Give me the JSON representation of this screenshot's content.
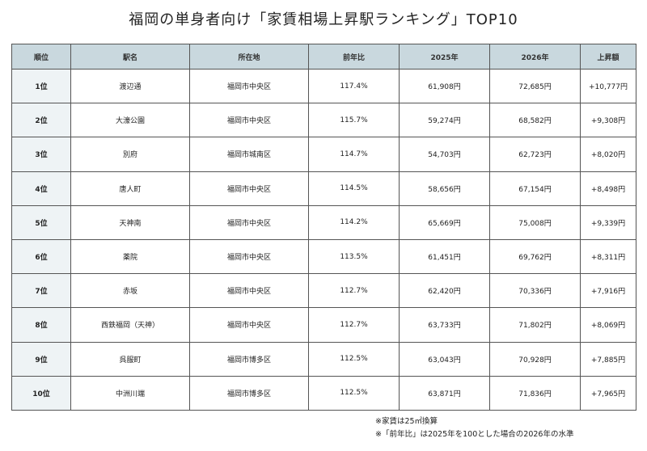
{
  "title": "福岡の単身者向け「家賃相場上昇駅ランキング」TOP10",
  "table": {
    "headers": [
      "順位",
      "駅名",
      "所在地",
      "前年比",
      "2025年",
      "2026年",
      "上昇額"
    ],
    "rows": [
      [
        "1位",
        "渡辺通",
        "福岡市中央区",
        "117.4%",
        "61,908円",
        "72,685円",
        "+10,777円"
      ],
      [
        "2位",
        "大濠公園",
        "福岡市中央区",
        "115.7%",
        "59,274円",
        "68,582円",
        "+9,308円"
      ],
      [
        "3位",
        "別府",
        "福岡市城南区",
        "114.7%",
        "54,703円",
        "62,723円",
        "+8,020円"
      ],
      [
        "4位",
        "唐人町",
        "福岡市中央区",
        "114.5%",
        "58,656円",
        "67,154円",
        "+8,498円"
      ],
      [
        "5位",
        "天神南",
        "福岡市中央区",
        "114.2%",
        "65,669円",
        "75,008円",
        "+9,339円"
      ],
      [
        "6位",
        "薬院",
        "福岡市中央区",
        "113.5%",
        "61,451円",
        "69,762円",
        "+8,311円"
      ],
      [
        "7位",
        "赤坂",
        "福岡市中央区",
        "112.7%",
        "62,420円",
        "70,336円",
        "+7,916円"
      ],
      [
        "8位",
        "西鉄福岡（天神）",
        "福岡市中央区",
        "112.7%",
        "63,733円",
        "71,802円",
        "+8,069円"
      ],
      [
        "9位",
        "呉服町",
        "福岡市博多区",
        "112.5%",
        "63,043円",
        "70,928円",
        "+7,885円"
      ],
      [
        "10位",
        "中洲川端",
        "福岡市博多区",
        "112.5%",
        "63,871円",
        "71,836円",
        "+7,965円"
      ]
    ]
  },
  "notes": [
    "※家賃は25㎡換算",
    "※「前年比」は2025年を100とした場合の2026年の水準"
  ]
}
